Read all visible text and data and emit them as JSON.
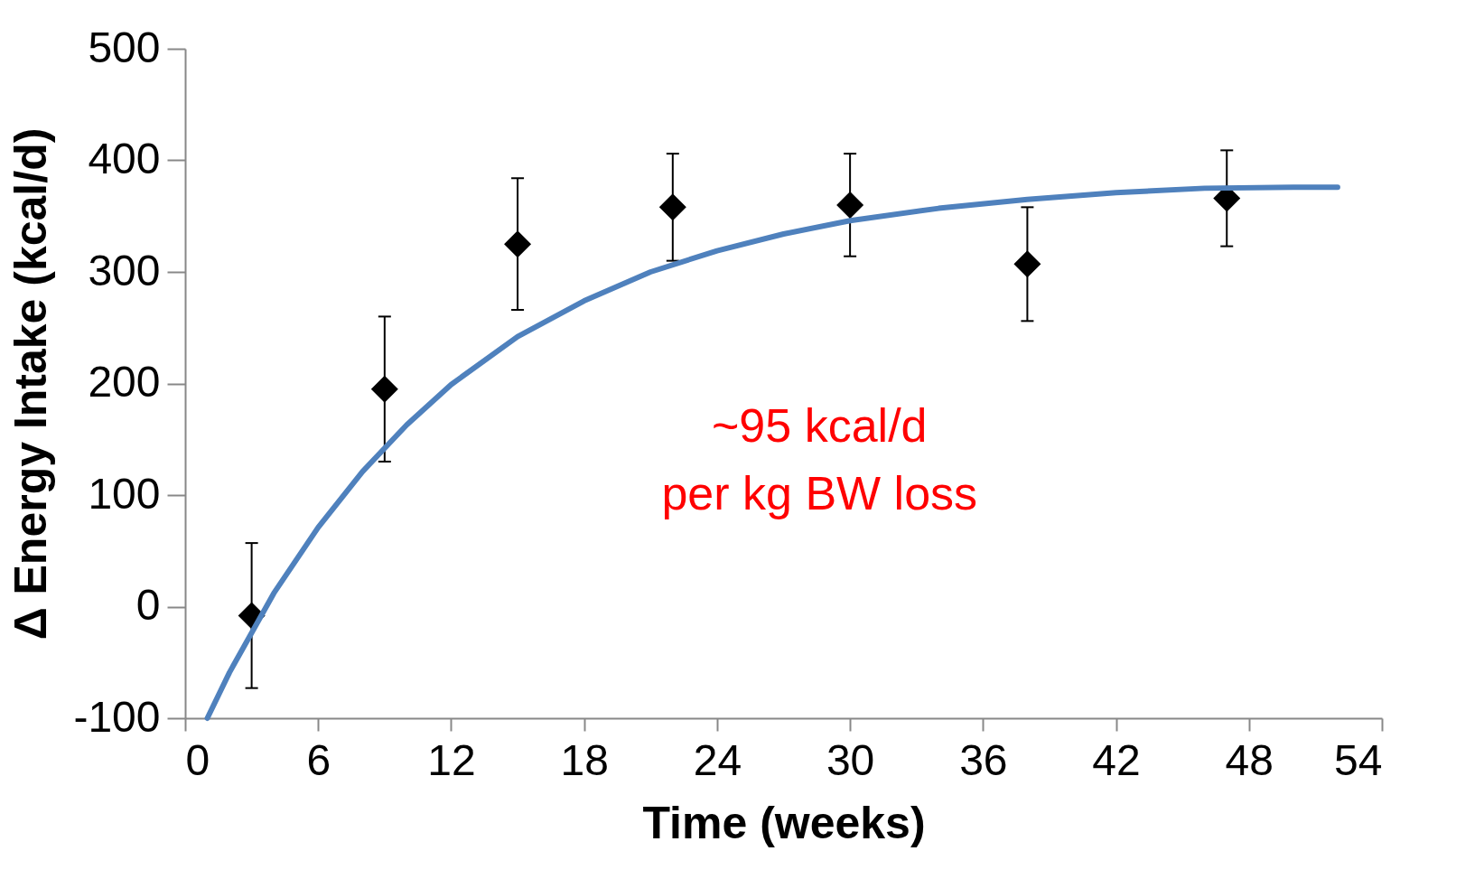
{
  "chart_data": {
    "type": "scatter",
    "xlabel": "Time (weeks)",
    "ylabel": "Δ Energy Intake (kcal/d)",
    "xlim": [
      0,
      54
    ],
    "xticks": [
      0,
      6,
      12,
      18,
      24,
      30,
      36,
      42,
      48,
      54
    ],
    "ylim": [
      -100,
      500
    ],
    "yticks": [
      -100,
      0,
      100,
      200,
      300,
      400,
      500
    ],
    "grid": false,
    "marker": "diamond",
    "annotations": [
      "~95 kcal/d",
      "per kg BW loss"
    ],
    "series": [
      {
        "type": "scatter",
        "color": "#000000",
        "x": [
          3,
          9,
          15,
          22,
          30,
          38,
          47
        ],
        "values": [
          -8,
          195,
          325,
          358,
          360,
          307,
          366
        ],
        "errors": [
          65,
          65,
          59,
          48,
          46,
          51,
          43
        ]
      },
      {
        "type": "line",
        "color": "#4f81bd",
        "line_style": "solid",
        "marker": "none",
        "x": [
          1,
          2,
          4,
          6,
          8,
          10,
          12,
          15,
          18,
          21,
          24,
          27,
          30,
          34,
          38,
          42,
          46,
          50,
          52
        ],
        "values": [
          -100,
          -59,
          12,
          71,
          121,
          163,
          199,
          242,
          274,
          300,
          319,
          334,
          346,
          357,
          365,
          371,
          375,
          376,
          376
        ]
      }
    ]
  }
}
